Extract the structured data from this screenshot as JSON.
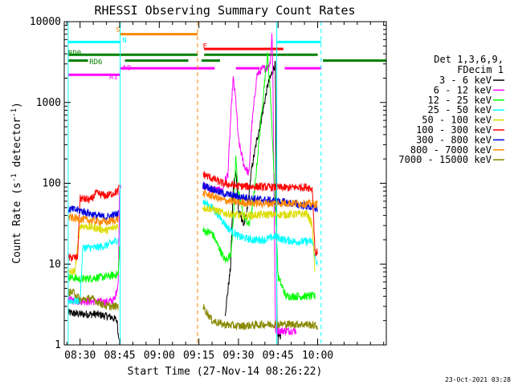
{
  "chart_data": {
    "type": "line",
    "title": "RHESSI Observing Summary Count Rates",
    "xlabel": "Start Time (27-Nov-14 08:26:22)",
    "ylabel": "Count Rate (s",
    "ylabel_sup": "-1",
    "ylabel_tail": " detector",
    "ylabel_close": ")",
    "yscale": "log",
    "xlim": [
      24,
      146
    ],
    "ylim": [
      1,
      10000
    ],
    "x_ticks": [
      {
        "t": 30,
        "label": "08:30"
      },
      {
        "t": 45,
        "label": "08:45"
      },
      {
        "t": 60,
        "label": "09:00"
      },
      {
        "t": 75,
        "label": "09:15"
      },
      {
        "t": 90,
        "label": "09:30"
      },
      {
        "t": 105,
        "label": "09:45"
      },
      {
        "t": 120,
        "label": "10:00"
      }
    ],
    "y_ticks": [
      {
        "v": 1,
        "label": "1"
      },
      {
        "v": 10,
        "label": "10"
      },
      {
        "v": 100,
        "label": "100"
      },
      {
        "v": 1000,
        "label": "1000"
      },
      {
        "v": 10000,
        "label": "10000"
      }
    ],
    "legend": {
      "placement": "right",
      "header": [
        "Det 1,3,6,9,",
        "FDecim 1"
      ],
      "entries": [
        {
          "label": "3 - 6 keV",
          "color": "#000000"
        },
        {
          "label": "6 - 12 keV",
          "color": "#ff00ff"
        },
        {
          "label": "12 - 25 keV",
          "color": "#00ff00"
        },
        {
          "label": "25 - 50 keV",
          "color": "#00ffff"
        },
        {
          "label": "50 - 100 keV",
          "color": "#dddd00"
        },
        {
          "label": "100 - 300 keV",
          "color": "#ff0000"
        },
        {
          "label": "300 - 800 keV",
          "color": "#0000dd"
        },
        {
          "label": "800 - 7000 keV",
          "color": "#ff8800"
        },
        {
          "label": "7000 - 15000 keV",
          "color": "#888800"
        }
      ]
    },
    "series": [
      {
        "name": "3 - 6 keV",
        "color": "#000000",
        "segments": [
          [
            [
              25.5,
              2.5
            ],
            [
              30,
              2.4
            ],
            [
              36,
              2.4
            ],
            [
              42,
              2.2
            ],
            [
              44,
              2.0
            ],
            [
              44.6,
              1.2
            ]
          ],
          [
            [
              85,
              2.5
            ],
            [
              87,
              9
            ],
            [
              88,
              85
            ],
            [
              89,
              150
            ],
            [
              90,
              45
            ],
            [
              92,
              32
            ],
            [
              93,
              38
            ],
            [
              95,
              150
            ],
            [
              97,
              350
            ],
            [
              99,
              700
            ],
            [
              101,
              1600
            ],
            [
              103,
              2500
            ],
            [
              104,
              3000
            ],
            [
              104.6,
              1.3
            ],
            [
              106,
              1.3
            ]
          ]
        ]
      },
      {
        "name": "6 - 12 keV",
        "color": "#ff00ff",
        "segments": [
          [
            [
              25.5,
              3.6
            ],
            [
              30,
              3.5
            ],
            [
              40,
              3.4
            ],
            [
              43,
              3.6
            ],
            [
              44,
              5
            ],
            [
              44.5,
              6
            ],
            [
              45,
              90
            ],
            [
              45.5,
              100
            ]
          ],
          [
            [
              76.5,
              95
            ],
            [
              79,
              85
            ],
            [
              84,
              80
            ],
            [
              85,
              110
            ],
            [
              86,
              130
            ],
            [
              87,
              600
            ],
            [
              88,
              2000
            ],
            [
              89,
              1050
            ],
            [
              90,
              340
            ],
            [
              92,
              170
            ],
            [
              94,
              130
            ],
            [
              95,
              500
            ],
            [
              97,
              2200
            ],
            [
              99,
              2600
            ],
            [
              101,
              2700
            ],
            [
              102,
              3100
            ],
            [
              102.7,
              7200
            ],
            [
              103,
              3000
            ],
            [
              104,
              1.5
            ],
            [
              109,
              1.5
            ],
            [
              112,
              1.5
            ]
          ]
        ]
      },
      {
        "name": "12 - 25 keV",
        "color": "#00ff00",
        "segments": [
          [
            [
              25.5,
              7
            ],
            [
              30,
              6.5
            ],
            [
              40,
              7
            ],
            [
              44.5,
              7.5
            ],
            [
              45,
              18
            ]
          ],
          [
            [
              76.5,
              26
            ],
            [
              80,
              24
            ],
            [
              85,
              11
            ],
            [
              87,
              13
            ],
            [
              88,
              30
            ],
            [
              89,
              220
            ],
            [
              90,
              75
            ],
            [
              92,
              40
            ],
            [
              94,
              30
            ],
            [
              96,
              75
            ],
            [
              98,
              400
            ],
            [
              100,
              2000
            ],
            [
              101,
              3800
            ],
            [
              102,
              1500
            ],
            [
              103,
              300
            ],
            [
              104,
              50
            ],
            [
              105,
              7
            ],
            [
              108,
              4
            ],
            [
              116,
              4
            ],
            [
              119,
              4
            ]
          ]
        ]
      },
      {
        "name": "25 - 50 keV",
        "color": "#00ffff",
        "segments": [
          [
            [
              25.5,
              3.5
            ],
            [
              30,
              3.5
            ],
            [
              31,
              16
            ],
            [
              36,
              16
            ],
            [
              40,
              17
            ],
            [
              44.5,
              20
            ]
          ],
          [
            [
              76.5,
              60
            ],
            [
              80,
              50
            ],
            [
              83,
              38
            ],
            [
              86,
              28
            ],
            [
              90,
              22
            ],
            [
              95,
              20
            ],
            [
              100,
              20
            ],
            [
              104,
              22
            ],
            [
              107,
              20
            ],
            [
              112,
              19
            ],
            [
              116,
              19
            ],
            [
              118,
              19
            ],
            [
              119,
              12
            ],
            [
              120,
              10
            ]
          ]
        ]
      },
      {
        "name": "50 - 100 keV",
        "color": "#dddd00",
        "segments": [
          [
            [
              25.5,
              8
            ],
            [
              28,
              8
            ],
            [
              30,
              30
            ],
            [
              36,
              28
            ],
            [
              40,
              26
            ],
            [
              44.5,
              30
            ]
          ],
          [
            [
              76.5,
              50
            ],
            [
              80,
              48
            ],
            [
              84,
              43
            ],
            [
              90,
              40
            ],
            [
              95,
              40
            ],
            [
              100,
              41
            ],
            [
              108,
              41
            ],
            [
              116,
              42
            ],
            [
              118,
              30
            ],
            [
              119,
              8
            ]
          ]
        ]
      },
      {
        "name": "100 - 300 keV",
        "color": "#ff0000",
        "segments": [
          [
            [
              25.5,
              12
            ],
            [
              29,
              12
            ],
            [
              30,
              65
            ],
            [
              34,
              62
            ],
            [
              36,
              75
            ],
            [
              40,
              70
            ],
            [
              44.5,
              80
            ],
            [
              45,
              95
            ]
          ],
          [
            [
              76.5,
              130
            ],
            [
              80,
              115
            ],
            [
              84,
              100
            ],
            [
              90,
              92
            ],
            [
              100,
              90
            ],
            [
              108,
              88
            ],
            [
              116,
              90
            ],
            [
              118,
              85
            ],
            [
              119,
              14
            ],
            [
              120,
              14
            ]
          ]
        ]
      },
      {
        "name": "300 - 800 keV",
        "color": "#0000dd",
        "segments": [
          [
            [
              25.5,
              48
            ],
            [
              30,
              46
            ],
            [
              36,
              40
            ],
            [
              40,
              38
            ],
            [
              44.5,
              42
            ]
          ],
          [
            [
              76.5,
              95
            ],
            [
              80,
              85
            ],
            [
              84,
              75
            ],
            [
              90,
              68
            ],
            [
              100,
              62
            ],
            [
              108,
              58
            ],
            [
              116,
              52
            ],
            [
              120,
              48
            ]
          ]
        ]
      },
      {
        "name": "800 - 7000 keV",
        "color": "#ff8800",
        "segments": [
          [
            [
              25.5,
              38
            ],
            [
              30,
              36
            ],
            [
              36,
              34
            ],
            [
              40,
              33
            ],
            [
              44.5,
              36
            ]
          ],
          [
            [
              76.5,
              75
            ],
            [
              80,
              70
            ],
            [
              84,
              62
            ],
            [
              90,
              58
            ],
            [
              100,
              56
            ],
            [
              108,
              57
            ],
            [
              116,
              56
            ],
            [
              120,
              55
            ]
          ]
        ]
      },
      {
        "name": "7000 - 15000 keV",
        "color": "#888800",
        "segments": [
          [
            [
              25.5,
              4.5
            ],
            [
              28,
              4.4
            ],
            [
              30,
              3.6
            ],
            [
              34,
              3.8
            ],
            [
              36,
              3.5
            ],
            [
              40,
              3.0
            ],
            [
              44.5,
              3.0
            ]
          ],
          [
            [
              76.5,
              3.0
            ],
            [
              80,
              2.0
            ],
            [
              84,
              1.8
            ],
            [
              90,
              1.7
            ],
            [
              100,
              1.8
            ],
            [
              108,
              1.8
            ],
            [
              116,
              1.8
            ],
            [
              120,
              1.7
            ]
          ]
        ]
      }
    ],
    "vertical_lines": [
      {
        "t": 25.5,
        "color": "#00ffff",
        "style": "solid"
      },
      {
        "t": 45.2,
        "color": "#00ffff",
        "style": "solid"
      },
      {
        "t": 104.5,
        "color": "#00ffff",
        "style": "solid"
      },
      {
        "t": 74.5,
        "color": "#ff8800",
        "style": "dashed"
      },
      {
        "t": 121.3,
        "color": "#00ffff",
        "style": "dashed"
      }
    ],
    "flag_bars": [
      {
        "label": "S",
        "color": "#ff8800",
        "label_color": "#ff8800",
        "segments": [
          [
            45.2,
            74.5
          ]
        ],
        "y": 7000,
        "label_at": 43.5,
        "label_y": 8000
      },
      {
        "label": "N",
        "color": "#00ffff",
        "label_color": "#00ffff",
        "segments": [
          [
            25.5,
            45.2
          ],
          [
            104.5,
            121.3
          ]
        ],
        "y": 5600,
        "label_at": 46,
        "label_y": 5900
      },
      {
        "label": "F",
        "color": "#ff0000",
        "label_color": "#ff0000",
        "segments": [
          [
            77,
            107
          ]
        ],
        "y": 4600,
        "label_at": 76.5,
        "label_y": 5000
      },
      {
        "label": "RD0",
        "color": "#008000",
        "label_color": "#008000",
        "segments": [
          [
            25.5,
            74.5
          ],
          [
            77,
            108.5
          ],
          [
            108.5,
            120
          ]
        ],
        "y": 3900,
        "label_at": 25.5,
        "label_y": 4100
      },
      {
        "label": "RD6",
        "color": "#008000",
        "label_color": "#008000",
        "segments": [
          [
            25.5,
            33
          ],
          [
            47,
            71
          ],
          [
            76,
            83
          ],
          [
            122,
            147
          ]
        ],
        "y": 3300,
        "label_at": 33.5,
        "label_y": 3200
      },
      {
        "label": "A0",
        "color": "#ff00ff",
        "label_color": "#ff00ff",
        "segments": [
          [
            45.2,
            81
          ],
          [
            89,
            98
          ],
          [
            107.5,
            121.3
          ]
        ],
        "y": 2650,
        "label_at": 46,
        "label_y": 2700
      },
      {
        "label": "A1",
        "color": "#ff00ff",
        "label_color": "#ff00ff",
        "segments": [
          [
            25.5,
            45.2
          ]
        ],
        "y": 2200,
        "label_at": 41,
        "label_y": 2100
      }
    ],
    "footer_stamp": "23-Oct-2021 03:28"
  }
}
